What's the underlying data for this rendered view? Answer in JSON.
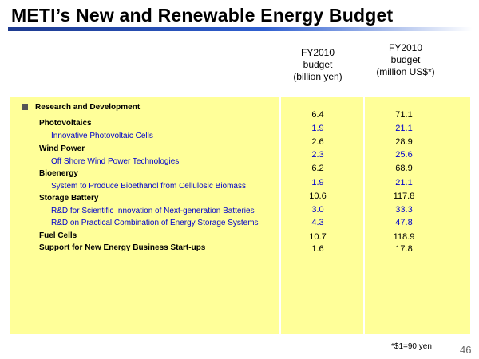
{
  "title": "METI’s New and Renewable Energy Budget",
  "columns": {
    "yen_header": [
      "FY2010",
      "budget",
      "(billion yen)"
    ],
    "usd_header": [
      "FY2010",
      "budget",
      "(million US$*)"
    ]
  },
  "section": "Research and Development",
  "rows": [
    {
      "label": "Photovoltaics",
      "kind": "cat",
      "yen": "6.4",
      "usd": "71.1"
    },
    {
      "label": "Innovative Photovoltaic Cells",
      "kind": "sub",
      "yen": "1.9",
      "usd": "21.1"
    },
    {
      "label": "Wind Power",
      "kind": "cat",
      "yen": "2.6",
      "usd": "28.9"
    },
    {
      "label": "Off Shore Wind Power Technologies",
      "kind": "sub",
      "yen": "2.3",
      "usd": "25.6"
    },
    {
      "label": "Bioenergy",
      "kind": "cat",
      "yen": "6.2",
      "usd": "68.9"
    },
    {
      "label": "System to Produce Bioethanol from Cellulosic Biomass",
      "kind": "sub",
      "yen": "1.9",
      "usd": "21.1"
    },
    {
      "label": "Storage Battery",
      "kind": "cat",
      "yen": "10.6",
      "usd": "117.8"
    },
    {
      "label": "R&D for Scientific Innovation of Next-generation Batteries",
      "kind": "sub",
      "yen": "3.0",
      "usd": "33.3"
    },
    {
      "label": "R&D on Practical Combination of Energy Storage Systems",
      "kind": "sub",
      "yen": "4.3",
      "usd": "47.8"
    },
    {
      "label": "Fuel Cells",
      "kind": "cat",
      "yen": "10.7",
      "usd": "118.9"
    },
    {
      "label": "Support for New Energy Business Start-ups",
      "kind": "cat",
      "yen": "1.6",
      "usd": "17.8"
    }
  ],
  "footnote": "*$1=90 yen",
  "page_number": "46",
  "colors": {
    "sub_label": "#0000cc",
    "panel": "#ffff99",
    "bar": "#1d3a8f"
  }
}
